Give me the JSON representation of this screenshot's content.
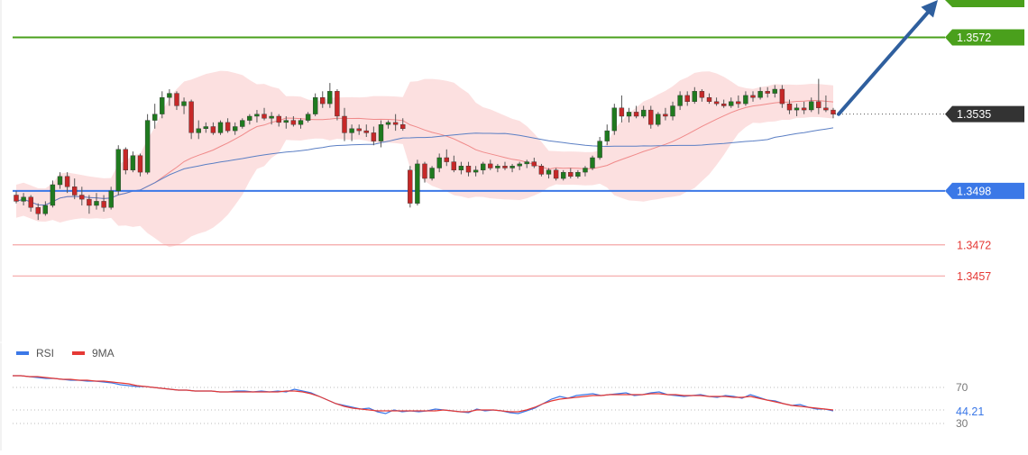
{
  "chart_data": [
    {
      "type": "candlestick",
      "title": "",
      "y_range": [
        1.3425,
        1.359
      ],
      "price_levels": [
        {
          "name": "resistance",
          "value": 1.3572,
          "label": "1.3572",
          "color": "#4aa01c",
          "style": "solid"
        },
        {
          "name": "current-price",
          "value": 1.3535,
          "label": "1.3535",
          "color": "#333333",
          "style": "dotted"
        },
        {
          "name": "pivot",
          "value": 1.3498,
          "label": "1.3498",
          "color": "#3b78e7",
          "style": "solid"
        },
        {
          "name": "support-1",
          "value": 1.3472,
          "label": "1.3472",
          "color": "#e53935",
          "style": "thin"
        },
        {
          "name": "support-2",
          "value": 1.3457,
          "label": "1.3457",
          "color": "#e53935",
          "style": "thin"
        }
      ],
      "indicators": [
        "bollinger-bands",
        "moving-average-20",
        "moving-average-50"
      ],
      "forecast_arrow": {
        "direction": "up",
        "from": 1.3535,
        "to": 1.359,
        "color": "#2f5f9e"
      },
      "candles": [
        [
          1.3496,
          1.3498,
          1.3492,
          1.3493
        ],
        [
          1.3493,
          1.3497,
          1.3491,
          1.3495
        ],
        [
          1.3495,
          1.3496,
          1.3488,
          1.349
        ],
        [
          1.349,
          1.3492,
          1.3484,
          1.3487
        ],
        [
          1.3487,
          1.3493,
          1.3486,
          1.3491
        ],
        [
          1.3491,
          1.3503,
          1.349,
          1.3501
        ],
        [
          1.3501,
          1.3507,
          1.3499,
          1.3505
        ],
        [
          1.3505,
          1.3507,
          1.3497,
          1.35
        ],
        [
          1.35,
          1.3504,
          1.3494,
          1.3496
        ],
        [
          1.3496,
          1.35,
          1.3491,
          1.3494
        ],
        [
          1.3494,
          1.3496,
          1.3487,
          1.3491
        ],
        [
          1.3491,
          1.3497,
          1.3489,
          1.3493
        ],
        [
          1.3493,
          1.3496,
          1.3488,
          1.349
        ],
        [
          1.349,
          1.35,
          1.3489,
          1.3498
        ],
        [
          1.3498,
          1.352,
          1.3496,
          1.3518
        ],
        [
          1.3518,
          1.3519,
          1.3506,
          1.3508
        ],
        [
          1.3508,
          1.3517,
          1.3507,
          1.3515
        ],
        [
          1.3515,
          1.3516,
          1.3505,
          1.3507
        ],
        [
          1.3507,
          1.3535,
          1.3506,
          1.3532
        ],
        [
          1.3532,
          1.354,
          1.3528,
          1.3535
        ],
        [
          1.3535,
          1.3546,
          1.3533,
          1.3543
        ],
        [
          1.3543,
          1.3547,
          1.3539,
          1.3545
        ],
        [
          1.3545,
          1.3546,
          1.3537,
          1.3539
        ],
        [
          1.3539,
          1.3543,
          1.3535,
          1.3541
        ],
        [
          1.3541,
          1.3542,
          1.3523,
          1.3526
        ],
        [
          1.3526,
          1.3532,
          1.3523,
          1.3528
        ],
        [
          1.3528,
          1.3531,
          1.3526,
          1.3529
        ],
        [
          1.3529,
          1.3531,
          1.3525,
          1.3526
        ],
        [
          1.3526,
          1.3532,
          1.3525,
          1.3531
        ],
        [
          1.3531,
          1.3533,
          1.3526,
          1.3527
        ],
        [
          1.3527,
          1.3531,
          1.3525,
          1.3529
        ],
        [
          1.3529,
          1.3533,
          1.3528,
          1.3532
        ],
        [
          1.3532,
          1.3535,
          1.353,
          1.3534
        ],
        [
          1.3534,
          1.3537,
          1.3531,
          1.3535
        ],
        [
          1.3535,
          1.3538,
          1.3532,
          1.3533
        ],
        [
          1.3533,
          1.3536,
          1.353,
          1.3534
        ],
        [
          1.3534,
          1.3535,
          1.3529,
          1.3531
        ],
        [
          1.3531,
          1.3534,
          1.3528,
          1.3532
        ],
        [
          1.3532,
          1.3534,
          1.3529,
          1.353
        ],
        [
          1.353,
          1.3533,
          1.3528,
          1.3532
        ],
        [
          1.3532,
          1.3536,
          1.3531,
          1.3535
        ],
        [
          1.3535,
          1.3545,
          1.3534,
          1.3543
        ],
        [
          1.3543,
          1.3546,
          1.3538,
          1.354
        ],
        [
          1.354,
          1.355,
          1.3538,
          1.3546
        ],
        [
          1.3546,
          1.3547,
          1.3532,
          1.3534
        ],
        [
          1.3534,
          1.3538,
          1.3522,
          1.3526
        ],
        [
          1.3526,
          1.353,
          1.3522,
          1.3528
        ],
        [
          1.3528,
          1.353,
          1.3525,
          1.3527
        ],
        [
          1.3527,
          1.353,
          1.3524,
          1.3526
        ],
        [
          1.3526,
          1.3529,
          1.352,
          1.3522
        ],
        [
          1.3522,
          1.3532,
          1.3519,
          1.353
        ],
        [
          1.353,
          1.3532,
          1.3528,
          1.3531
        ],
        [
          1.3531,
          1.3535,
          1.3527,
          1.353
        ],
        [
          1.353,
          1.3533,
          1.3527,
          1.3528
        ],
        [
          1.3508,
          1.351,
          1.349,
          1.3492
        ],
        [
          1.3492,
          1.3513,
          1.3491,
          1.3511
        ],
        [
          1.3511,
          1.3512,
          1.3502,
          1.3504
        ],
        [
          1.3504,
          1.351,
          1.3503,
          1.3509
        ],
        [
          1.3509,
          1.3516,
          1.3507,
          1.3514
        ],
        [
          1.3514,
          1.3518,
          1.351,
          1.3512
        ],
        [
          1.3512,
          1.3515,
          1.3507,
          1.3508
        ],
        [
          1.3508,
          1.3512,
          1.3506,
          1.351
        ],
        [
          1.351,
          1.3512,
          1.3505,
          1.3507
        ],
        [
          1.3507,
          1.351,
          1.3505,
          1.3508
        ],
        [
          1.3508,
          1.3512,
          1.3506,
          1.3511
        ],
        [
          1.3511,
          1.3513,
          1.3508,
          1.3509
        ],
        [
          1.3509,
          1.3511,
          1.3507,
          1.351
        ],
        [
          1.351,
          1.3512,
          1.3508,
          1.3509
        ],
        [
          1.3509,
          1.3511,
          1.3507,
          1.351
        ],
        [
          1.351,
          1.3512,
          1.3508,
          1.3511
        ],
        [
          1.3511,
          1.3513,
          1.3509,
          1.3512
        ],
        [
          1.3512,
          1.3514,
          1.3509,
          1.351
        ],
        [
          1.351,
          1.3511,
          1.3505,
          1.3506
        ],
        [
          1.3506,
          1.3509,
          1.3504,
          1.3508
        ],
        [
          1.3508,
          1.3509,
          1.3503,
          1.3504
        ],
        [
          1.3504,
          1.3508,
          1.3503,
          1.3507
        ],
        [
          1.3507,
          1.3509,
          1.3504,
          1.3505
        ],
        [
          1.3505,
          1.3508,
          1.3504,
          1.3507
        ],
        [
          1.3507,
          1.351,
          1.3505,
          1.3509
        ],
        [
          1.3509,
          1.3515,
          1.3508,
          1.3514
        ],
        [
          1.3514,
          1.3524,
          1.3513,
          1.3522
        ],
        [
          1.3522,
          1.353,
          1.352,
          1.3527
        ],
        [
          1.3527,
          1.354,
          1.3525,
          1.3538
        ],
        [
          1.3538,
          1.3544,
          1.3531,
          1.3534
        ],
        [
          1.3534,
          1.3538,
          1.3531,
          1.3536
        ],
        [
          1.3536,
          1.3539,
          1.3533,
          1.3534
        ],
        [
          1.3534,
          1.3539,
          1.3533,
          1.3537
        ],
        [
          1.3537,
          1.3539,
          1.3528,
          1.353
        ],
        [
          1.353,
          1.3536,
          1.3529,
          1.3535
        ],
        [
          1.3535,
          1.3538,
          1.3532,
          1.3534
        ],
        [
          1.3534,
          1.3541,
          1.3532,
          1.3539
        ],
        [
          1.3539,
          1.3546,
          1.3537,
          1.3544
        ],
        [
          1.3544,
          1.3546,
          1.3539,
          1.3541
        ],
        [
          1.3541,
          1.3548,
          1.354,
          1.3546
        ],
        [
          1.3546,
          1.3547,
          1.3541,
          1.3543
        ],
        [
          1.3543,
          1.3545,
          1.354,
          1.3541
        ],
        [
          1.3541,
          1.3543,
          1.3539,
          1.354
        ],
        [
          1.354,
          1.3542,
          1.3538,
          1.3539
        ],
        [
          1.3539,
          1.3543,
          1.3538,
          1.3541
        ],
        [
          1.3541,
          1.3544,
          1.3538,
          1.354
        ],
        [
          1.354,
          1.3546,
          1.3539,
          1.3544
        ],
        [
          1.3544,
          1.3546,
          1.3541,
          1.3543
        ],
        [
          1.3543,
          1.3548,
          1.3542,
          1.3546
        ],
        [
          1.3546,
          1.3548,
          1.3543,
          1.3545
        ],
        [
          1.3545,
          1.3549,
          1.3543,
          1.3547
        ],
        [
          1.3547,
          1.3549,
          1.3538,
          1.354
        ],
        [
          1.354,
          1.3542,
          1.3535,
          1.3537
        ],
        [
          1.3537,
          1.354,
          1.3534,
          1.3538
        ],
        [
          1.3538,
          1.3541,
          1.3535,
          1.3537
        ],
        [
          1.3537,
          1.3543,
          1.3536,
          1.3541
        ],
        [
          1.3541,
          1.3552,
          1.3535,
          1.3538
        ],
        [
          1.3538,
          1.3544,
          1.3536,
          1.3537
        ],
        [
          1.3537,
          1.3538,
          1.3533,
          1.3535
        ]
      ]
    },
    {
      "type": "line",
      "title": "",
      "y_range": [
        20,
        95
      ],
      "reference_levels": [
        {
          "value": 70,
          "label": "70"
        },
        {
          "value": 30,
          "label": "30"
        }
      ],
      "current_value_label": "44.21",
      "series": [
        {
          "name": "RSI",
          "color": "#3b78e7",
          "values": [
            83,
            83,
            82,
            81,
            80,
            80,
            79,
            78,
            78,
            77,
            77,
            76,
            75,
            73,
            72,
            71,
            71,
            70,
            69,
            68,
            67,
            67,
            66,
            66,
            66,
            65,
            65,
            66,
            66,
            65,
            66,
            65,
            66,
            65,
            68,
            66,
            64,
            60,
            56,
            52,
            50,
            48,
            46,
            47,
            43,
            41,
            45,
            43,
            44,
            43,
            44,
            46,
            45,
            44,
            43,
            42,
            46,
            44,
            45,
            44,
            42,
            41,
            44,
            47,
            52,
            57,
            60,
            58,
            61,
            62,
            63,
            61,
            62,
            63,
            64,
            61,
            62,
            64,
            65,
            62,
            61,
            60,
            61,
            62,
            60,
            59,
            61,
            60,
            58,
            62,
            59,
            56,
            55,
            52,
            50,
            51,
            48,
            46,
            46,
            44
          ]
        },
        {
          "name": "9MA",
          "color": "#e53935",
          "values": [
            83,
            83,
            82,
            82,
            81,
            80,
            79,
            79,
            78,
            78,
            77,
            77,
            76,
            75,
            74,
            72,
            71,
            70,
            69,
            68,
            67,
            67,
            66,
            66,
            66,
            65,
            65,
            65,
            65,
            65,
            65,
            65,
            65,
            66,
            66,
            65,
            63,
            60,
            56,
            52,
            49,
            47,
            46,
            45,
            44,
            44,
            44,
            44,
            44,
            44,
            44,
            44,
            45,
            44,
            43,
            43,
            45,
            45,
            45,
            44,
            43,
            43,
            45,
            48,
            52,
            55,
            57,
            58,
            59,
            60,
            61,
            61,
            62,
            62,
            62,
            62,
            62,
            63,
            63,
            62,
            62,
            61,
            61,
            61,
            60,
            60,
            60,
            59,
            59,
            60,
            58,
            56,
            54,
            52,
            50,
            49,
            48,
            47,
            46,
            45
          ]
        }
      ],
      "legend": [
        "RSI",
        "9MA"
      ]
    }
  ]
}
